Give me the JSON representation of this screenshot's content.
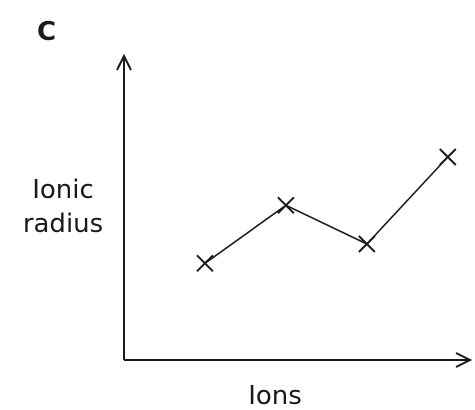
{
  "chart_data": {
    "type": "line",
    "panel_label": "C",
    "xlabel": "Ions",
    "ylabel": [
      "Ionic",
      "radius"
    ],
    "x": [
      1,
      2,
      3,
      4
    ],
    "y": [
      2,
      3.2,
      2.4,
      4.2
    ],
    "xlim": [
      0,
      4.2
    ],
    "ylim": [
      0,
      6
    ],
    "marker": "cross",
    "grid": false,
    "legend": "none",
    "line_color": "#1a1a1a"
  }
}
